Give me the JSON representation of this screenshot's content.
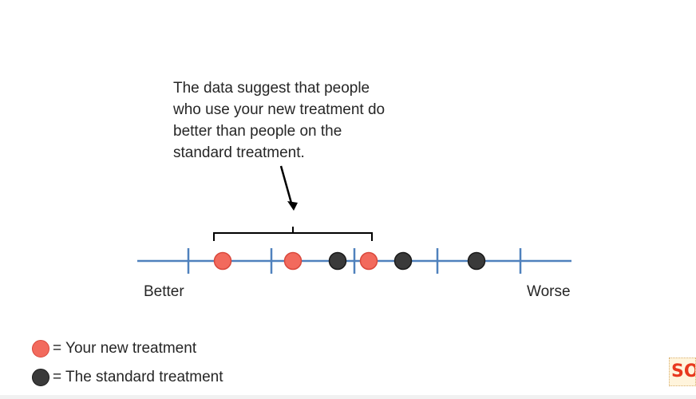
{
  "annotation": {
    "lines": [
      "The data suggest that people",
      "who use your new treatment do",
      "better than people on the",
      "standard treatment."
    ]
  },
  "scale": {
    "left_label": "Better",
    "right_label": "Worse"
  },
  "legend": {
    "new_treatment": {
      "label": "= Your new treatment",
      "color": "#f26a5d"
    },
    "standard_treatment": {
      "label": "= The standard treatment",
      "color": "#3a3a3a"
    }
  },
  "points": [
    {
      "group": "new",
      "rank": 1
    },
    {
      "group": "new",
      "rank": 2
    },
    {
      "group": "standard",
      "rank": 3
    },
    {
      "group": "new",
      "rank": 4
    },
    {
      "group": "standard",
      "rank": 5
    },
    {
      "group": "standard",
      "rank": 6
    }
  ],
  "colors": {
    "axis": "#4f81bd",
    "bracket": "#000000",
    "text": "#262626"
  },
  "logo_text": "SO"
}
